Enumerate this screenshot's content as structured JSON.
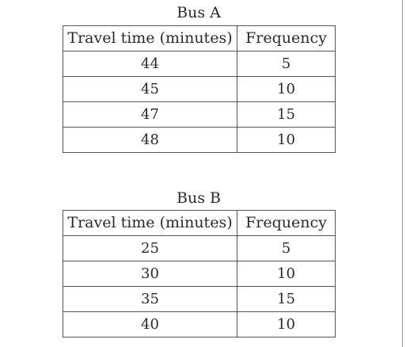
{
  "tables": [
    {
      "title": "Bus A",
      "headers": [
        "Travel time (minutes)",
        "Frequency"
      ],
      "rows": [
        [
          "44",
          "5"
        ],
        [
          "45",
          "10"
        ],
        [
          "47",
          "15"
        ],
        [
          "48",
          "10"
        ]
      ]
    },
    {
      "title": "Bus B",
      "headers": [
        "Travel time (minutes)",
        "Frequency"
      ],
      "rows": [
        [
          "25",
          "5"
        ],
        [
          "30",
          "10"
        ],
        [
          "35",
          "15"
        ],
        [
          "40",
          "10"
        ]
      ]
    }
  ],
  "chart_data": [
    {
      "type": "table",
      "title": "Bus A",
      "columns": [
        "Travel time (minutes)",
        "Frequency"
      ],
      "x": [
        44,
        45,
        47,
        48
      ],
      "values": [
        5,
        10,
        15,
        10
      ]
    },
    {
      "type": "table",
      "title": "Bus B",
      "columns": [
        "Travel time (minutes)",
        "Frequency"
      ],
      "x": [
        25,
        30,
        35,
        40
      ],
      "values": [
        5,
        10,
        15,
        10
      ]
    }
  ]
}
